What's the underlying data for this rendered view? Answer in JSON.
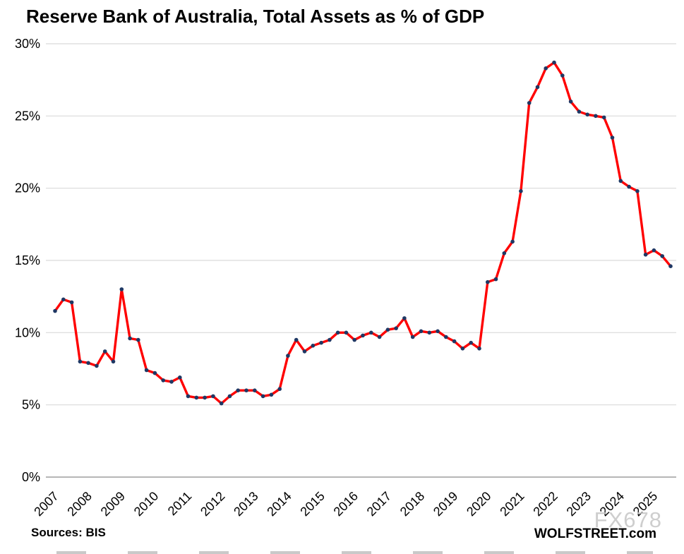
{
  "page": {
    "title": "Reserve Bank of Australia, Total Assets as % of GDP",
    "footer_left": "Sources: BIS",
    "footer_right": "WOLFSTREET.com",
    "watermark": "FX678"
  },
  "colors": {
    "line": "#FF0000",
    "marker": "#1F3864",
    "gridline": "#D9D9D9",
    "axis_line": "#9E9E9E",
    "text": "#000000",
    "watermark": "#C6C6C6"
  },
  "chart_data": {
    "type": "line",
    "title": "Reserve Bank of Australia, Total Assets as % of GDP",
    "series": [
      {
        "name": "RBA total assets as % of GDP",
        "color": "#FF0000",
        "marker_color": "#1F3864",
        "values": [
          11.5,
          12.3,
          12.1,
          8.0,
          7.9,
          7.7,
          8.7,
          8.0,
          13.0,
          9.6,
          9.5,
          7.4,
          7.2,
          6.7,
          6.6,
          6.9,
          5.6,
          5.5,
          5.5,
          5.6,
          5.1,
          5.6,
          6.0,
          6.0,
          6.0,
          5.6,
          5.7,
          6.1,
          8.4,
          9.5,
          8.7,
          9.1,
          9.3,
          9.5,
          10.0,
          10.0,
          9.5,
          9.8,
          10.0,
          9.7,
          10.2,
          10.3,
          11.0,
          9.7,
          10.1,
          10.0,
          10.1,
          9.7,
          9.4,
          8.9,
          9.3,
          8.9,
          13.5,
          13.7,
          15.5,
          16.3,
          19.8,
          25.9,
          27.0,
          28.3,
          28.7,
          27.8,
          26.0,
          25.3,
          25.1,
          25.0,
          24.9,
          23.5,
          20.5,
          20.1,
          19.8,
          15.4,
          15.7,
          15.3,
          14.6
        ]
      }
    ],
    "x_start": "2007-Q1",
    "x_frequency": "quarterly",
    "points_per_year": 4,
    "x_tick_labels": [
      "2007",
      "2008",
      "2009",
      "2010",
      "2011",
      "2012",
      "2013",
      "2014",
      "2015",
      "2016",
      "2017",
      "2018",
      "2019",
      "2020",
      "2021",
      "2022",
      "2023",
      "2024",
      "2025"
    ],
    "y_tick_labels": [
      "0%",
      "5%",
      "10%",
      "15%",
      "20%",
      "25%",
      "30%"
    ],
    "y_tick_values": [
      0,
      5,
      10,
      15,
      20,
      25,
      30
    ],
    "ylim": [
      0,
      30
    ],
    "grid": "horizontal",
    "legend": "none",
    "peak_value": 28.7,
    "last_value": 14.6
  }
}
